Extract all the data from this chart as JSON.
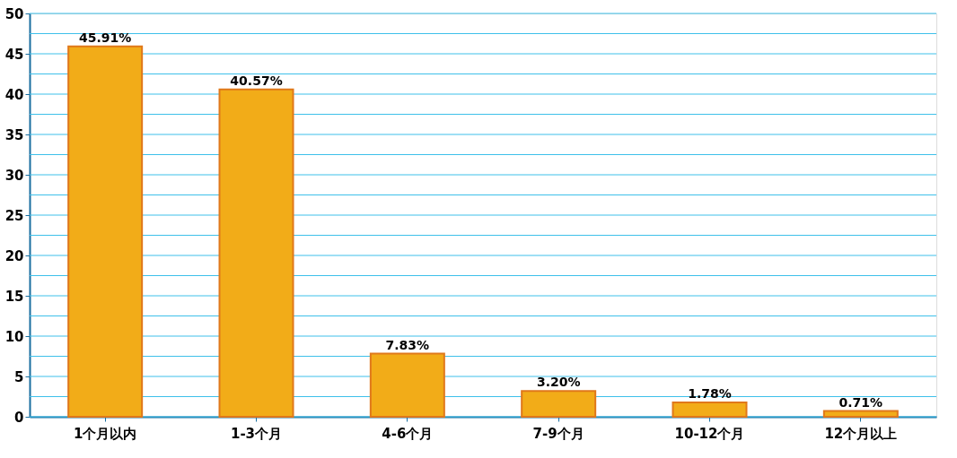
{
  "chart_data": {
    "type": "bar",
    "categories": [
      "1个月以内",
      "1-3个月",
      "4-6个月",
      "7-9个月",
      "10-12个月",
      "12个月以上"
    ],
    "values": [
      45.91,
      40.57,
      7.83,
      3.2,
      1.78,
      0.71
    ],
    "value_labels": [
      "45.91%",
      "40.57%",
      "7.83%",
      "3.20%",
      "1.78%",
      "0.71%"
    ],
    "color": "#f2ac18",
    "ylim": [
      0,
      50
    ],
    "yticks": [
      0,
      {
        "value": 2.5,
        "label": null
      },
      5,
      {
        "value": 7.5,
        "label": null
      },
      10,
      {
        "value": 12.5,
        "label": null
      },
      15,
      {
        "value": 17.5,
        "label": null
      },
      20,
      {
        "value": 22.5,
        "label": null
      },
      25,
      {
        "value": 27.5,
        "label": null
      },
      30,
      {
        "value": 32.5,
        "label": null
      },
      35,
      {
        "value": 37.5,
        "label": null
      },
      40,
      {
        "value": 42.5,
        "label": null
      },
      45,
      {
        "value": 47.5,
        "label": null
      },
      50
    ],
    "grid": "y"
  }
}
